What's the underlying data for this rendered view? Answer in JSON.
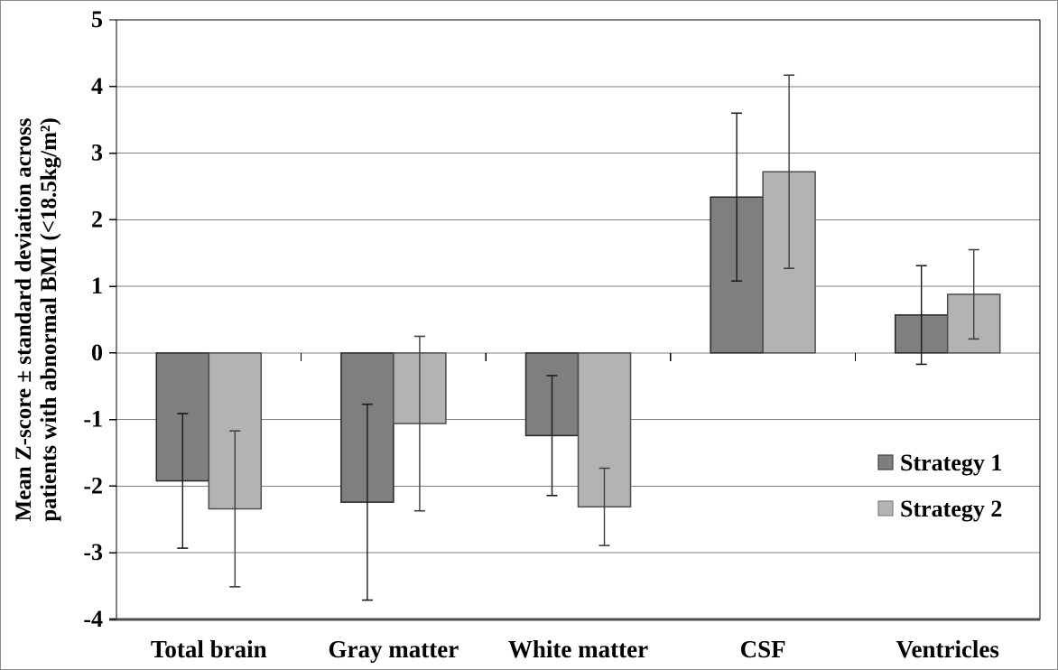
{
  "figure": {
    "background": "#ffffff",
    "outer_border_color": "#8c8c8c"
  },
  "chart_data": {
    "type": "bar",
    "title": "",
    "ylabel_line1": "Mean Z-score ± standard deviation across",
    "ylabel_line2": "patients with abnormal BMI (<18.5kg/m²)",
    "xlabel": "",
    "categories": [
      "Total brain",
      "Gray matter",
      "White matter",
      "CSF",
      "Ventricles"
    ],
    "series": [
      {
        "name": "Strategy 1",
        "color": "#7f7f7f",
        "border_color": "#262626",
        "error_color": "#1a1a1a",
        "values": [
          -1.92,
          -2.24,
          -1.24,
          2.34,
          0.57
        ],
        "errors": [
          1.01,
          1.47,
          0.9,
          1.26,
          0.74
        ]
      },
      {
        "name": "Strategy 2",
        "color": "#b3b3b3",
        "border_color": "#4d4d4d",
        "error_color": "#404040",
        "values": [
          -2.34,
          -1.06,
          -2.31,
          2.72,
          0.88
        ],
        "errors": [
          1.17,
          1.31,
          0.58,
          1.45,
          0.67
        ]
      }
    ],
    "y_axis": {
      "min": -4,
      "max": 5,
      "step": 1,
      "ticks": [
        5,
        4,
        3,
        2,
        1,
        0,
        -1,
        -2,
        -3,
        -4
      ]
    },
    "grid": true,
    "gridline_color": "#808080",
    "axis_color": "#000000",
    "category_axis_color": "#4d4d4d",
    "legend": {
      "position": "right-middle",
      "entries": [
        {
          "label": "Strategy 1",
          "swatch_color": "#7f7f7f",
          "swatch_border": "#404040"
        },
        {
          "label": "Strategy 2",
          "swatch_color": "#b3b3b3",
          "swatch_border": "#808080"
        }
      ]
    }
  }
}
